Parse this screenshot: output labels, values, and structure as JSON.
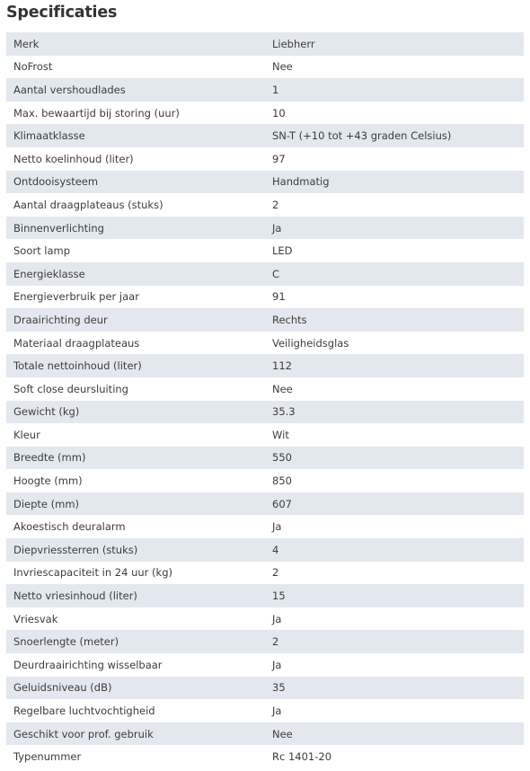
{
  "title": "Specificaties",
  "rows": [
    {
      "label": "Merk",
      "value": "Liebherr"
    },
    {
      "label": "NoFrost",
      "value": "Nee"
    },
    {
      "label": "Aantal vershoudlades",
      "value": "1"
    },
    {
      "label": "Max. bewaartijd bij storing (uur)",
      "value": "10"
    },
    {
      "label": "Klimaatklasse",
      "value": "SN-T (+10 tot +43 graden Celsius)"
    },
    {
      "label": "Netto koelinhoud (liter)",
      "value": "97"
    },
    {
      "label": "Ontdooisysteem",
      "value": "Handmatig"
    },
    {
      "label": "Aantal draagplateaus (stuks)",
      "value": "2"
    },
    {
      "label": "Binnenverlichting",
      "value": "Ja"
    },
    {
      "label": "Soort lamp",
      "value": "LED"
    },
    {
      "label": "Energieklasse",
      "value": "C"
    },
    {
      "label": "Energieverbruik per jaar",
      "value": "91"
    },
    {
      "label": "Draairichting deur",
      "value": "Rechts"
    },
    {
      "label": "Materiaal draagplateaus",
      "value": "Veiligheidsglas"
    },
    {
      "label": "Totale nettoinhoud (liter)",
      "value": "112"
    },
    {
      "label": "Soft close deursluiting",
      "value": "Nee"
    },
    {
      "label": "Gewicht (kg)",
      "value": "35.3"
    },
    {
      "label": "Kleur",
      "value": "Wit"
    },
    {
      "label": "Breedte (mm)",
      "value": "550"
    },
    {
      "label": "Hoogte (mm)",
      "value": "850"
    },
    {
      "label": "Diepte (mm)",
      "value": "607"
    },
    {
      "label": "Akoestisch deuralarm",
      "value": "Ja"
    },
    {
      "label": "Diepvriessterren (stuks)",
      "value": "4"
    },
    {
      "label": "Invriescapaciteit in 24 uur (kg)",
      "value": "2"
    },
    {
      "label": "Netto vriesinhoud (liter)",
      "value": "15"
    },
    {
      "label": "Vriesvak",
      "value": "Ja"
    },
    {
      "label": "Snoerlengte (meter)",
      "value": "2"
    },
    {
      "label": "Deurdraairichting wisselbaar",
      "value": "Ja"
    },
    {
      "label": "Geluidsniveau (dB)",
      "value": "35"
    },
    {
      "label": "Regelbare luchtvochtigheid",
      "value": "Ja"
    },
    {
      "label": "Geschikt voor prof. gebruik",
      "value": "Nee"
    },
    {
      "label": "Typenummer",
      "value": "Rc 1401-20"
    }
  ]
}
